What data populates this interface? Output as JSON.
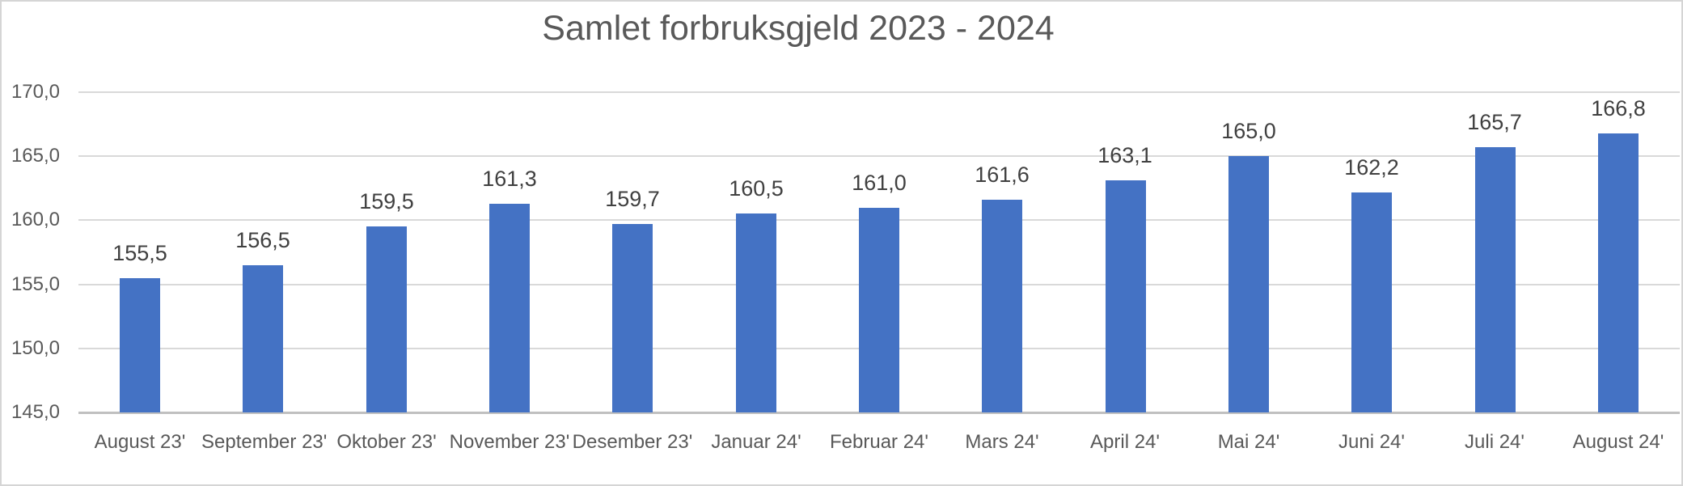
{
  "chart_data": {
    "type": "bar",
    "title": "Samlet forbruksgjeld 2023 - 2024",
    "categories": [
      "August 23'",
      "September 23'",
      "Oktober 23'",
      "November 23'",
      "Desember 23'",
      "Januar 24'",
      "Februar 24'",
      "Mars 24'",
      "April 24'",
      "Mai 24'",
      "Juni 24'",
      "Juli 24'",
      "August 24'"
    ],
    "values": [
      155.5,
      156.5,
      159.5,
      161.3,
      159.7,
      160.5,
      161.0,
      161.6,
      163.1,
      165.0,
      162.2,
      165.7,
      166.8
    ],
    "value_labels": [
      "155,5",
      "156,5",
      "159,5",
      "161,3",
      "159,7",
      "160,5",
      "161,0",
      "161,6",
      "163,1",
      "165,0",
      "162,2",
      "165,7",
      "166,8"
    ],
    "y_ticks": [
      {
        "value": 170,
        "label": "170,0"
      },
      {
        "value": 165,
        "label": "165,0"
      },
      {
        "value": 160,
        "label": "160,0"
      },
      {
        "value": 155,
        "label": "155,0"
      },
      {
        "value": 150,
        "label": "150,0"
      },
      {
        "value": 145,
        "label": "145,0"
      }
    ],
    "ylim": [
      145,
      170
    ],
    "xlabel": "",
    "ylabel": "",
    "grid": true,
    "legend": false,
    "colors": {
      "bar": "#4472C4",
      "gridline": "#D9D9D9",
      "axis_line": "#C0C0C0",
      "axis_text": "#595959",
      "value_label_text": "#404040",
      "title_text": "#595959",
      "chart_border": "#D5D5D5",
      "background": "#FFFFFF"
    }
  }
}
